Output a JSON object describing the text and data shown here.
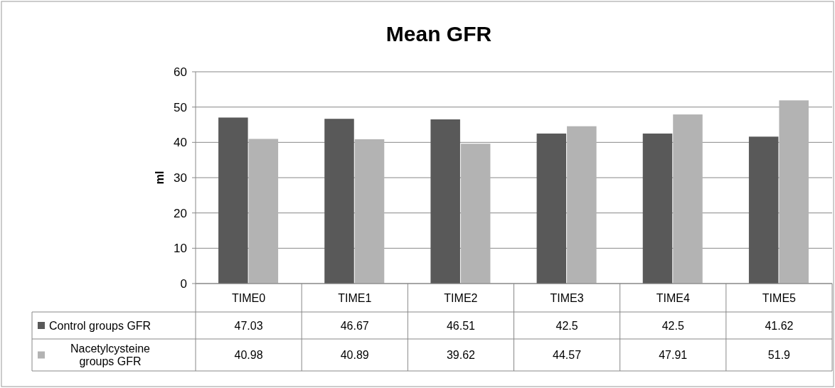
{
  "chart_data": {
    "type": "bar",
    "title": "Mean GFR",
    "ylabel": "ml",
    "categories": [
      "TIME0",
      "TIME1",
      "TIME2",
      "TIME3",
      "TIME4",
      "TIME5"
    ],
    "series": [
      {
        "name": "Control groups GFR",
        "color": "#595959",
        "values": [
          47.03,
          46.67,
          46.51,
          42.5,
          42.5,
          41.62
        ]
      },
      {
        "name": "Nacetylcysteine groups GFR",
        "color": "#b3b3b3",
        "values": [
          40.98,
          40.89,
          39.62,
          44.57,
          47.91,
          51.9
        ]
      }
    ],
    "ylim": [
      0,
      60
    ],
    "yticks": [
      0,
      10,
      20,
      30,
      40,
      50,
      60
    ],
    "grid": "y",
    "legend": "bottom",
    "data_labels": true
  }
}
